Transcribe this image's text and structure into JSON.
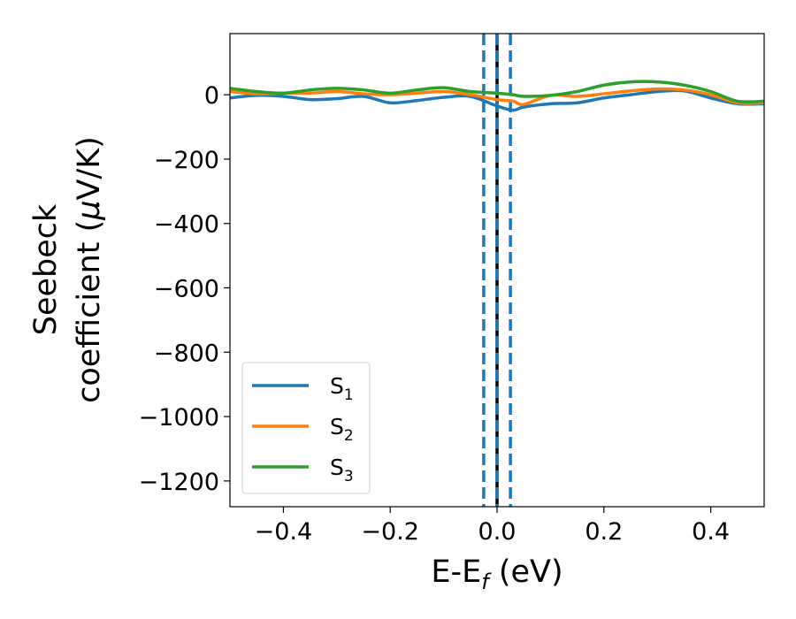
{
  "chart_data": {
    "type": "line",
    "xlabel": {
      "main": "E-E",
      "sub": "f",
      "tail": " (eV)"
    },
    "ylabel": {
      "line1": "Seebeck",
      "line2": "coefficient  (",
      "mu": "μ",
      "tail": "V/K)"
    },
    "xlim": [
      -0.5,
      0.5
    ],
    "ylim": [
      -1280,
      190
    ],
    "xticks": [
      -0.4,
      -0.2,
      0.0,
      0.2,
      0.4
    ],
    "xtick_labels": [
      "−0.4",
      "−0.2",
      "0.0",
      "0.2",
      "0.4"
    ],
    "yticks": [
      0,
      -200,
      -400,
      -600,
      -800,
      -1000,
      -1200
    ],
    "ytick_labels": [
      "0",
      "−200",
      "−400",
      "−600",
      "−800",
      "−1000",
      "−1200"
    ],
    "grid": false,
    "legend_position": "lower-left",
    "vlines": [
      {
        "x": 0.0,
        "color": "#000000",
        "style": "solid"
      },
      {
        "x": 0.0,
        "color": "#1f77b4",
        "style": "dashed"
      },
      {
        "x": -0.025,
        "color": "#1f77b4",
        "style": "dashed"
      },
      {
        "x": 0.025,
        "color": "#1f77b4",
        "style": "dashed"
      }
    ],
    "series": [
      {
        "name": "S",
        "sub": "1",
        "color": "#1f77b4",
        "x": [
          -0.5,
          -0.45,
          -0.4,
          -0.35,
          -0.3,
          -0.25,
          -0.2,
          -0.15,
          -0.1,
          -0.05,
          0.0,
          0.03,
          0.05,
          0.1,
          0.15,
          0.2,
          0.25,
          0.3,
          0.35,
          0.4,
          0.45,
          0.5
        ],
        "y": [
          -10,
          -2,
          -5,
          -15,
          -12,
          -5,
          -25,
          -18,
          -8,
          -5,
          -35,
          -48,
          -38,
          -28,
          -25,
          -10,
          0,
          10,
          12,
          -10,
          -28,
          -28
        ]
      },
      {
        "name": "S",
        "sub": "2",
        "color": "#ff7f0e",
        "x": [
          -0.5,
          -0.45,
          -0.4,
          -0.35,
          -0.3,
          -0.25,
          -0.2,
          -0.15,
          -0.1,
          -0.05,
          0.0,
          0.03,
          0.05,
          0.1,
          0.15,
          0.2,
          0.25,
          0.3,
          0.35,
          0.4,
          0.45,
          0.5
        ],
        "y": [
          10,
          3,
          5,
          5,
          10,
          3,
          0,
          5,
          10,
          0,
          -15,
          -20,
          -30,
          -2,
          -5,
          3,
          12,
          18,
          15,
          0,
          -25,
          -25
        ]
      },
      {
        "name": "S",
        "sub": "3",
        "color": "#2ca02c",
        "x": [
          -0.5,
          -0.45,
          -0.4,
          -0.35,
          -0.3,
          -0.25,
          -0.2,
          -0.15,
          -0.1,
          -0.05,
          0.0,
          0.03,
          0.05,
          0.1,
          0.15,
          0.2,
          0.25,
          0.3,
          0.35,
          0.4,
          0.45,
          0.5
        ],
        "y": [
          20,
          10,
          5,
          15,
          20,
          15,
          5,
          15,
          22,
          10,
          5,
          0,
          -5,
          -2,
          10,
          30,
          40,
          40,
          30,
          10,
          -20,
          -20
        ]
      }
    ]
  }
}
